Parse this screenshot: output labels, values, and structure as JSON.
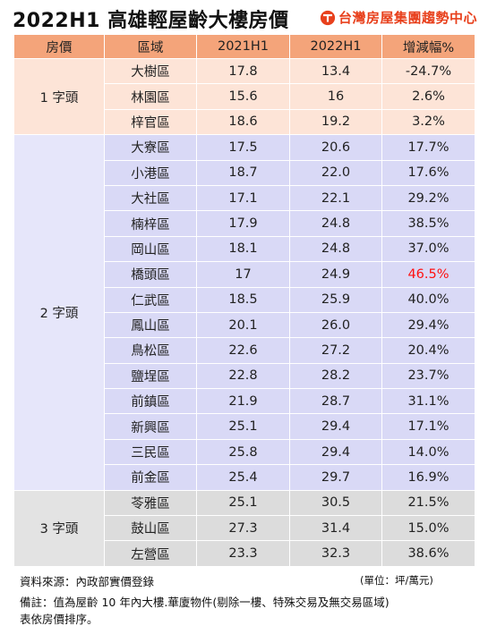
{
  "header": {
    "title": "2022H1 高雄輕屋齡大樓房價",
    "brand": "台灣房屋集團趨勢中心"
  },
  "table": {
    "columns": [
      "房價",
      "區域",
      "2021H1",
      "2022H1",
      "增減幅%"
    ],
    "groups": [
      {
        "label": "1 字頭",
        "rows": [
          {
            "area": "大樹區",
            "y2021": "17.8",
            "y2022": "13.4",
            "change": "-24.7%"
          },
          {
            "area": "林園區",
            "y2021": "15.6",
            "y2022": "16",
            "change": "2.6%"
          },
          {
            "area": "梓官區",
            "y2021": "18.6",
            "y2022": "19.2",
            "change": "3.2%"
          }
        ]
      },
      {
        "label": "2 字頭",
        "rows": [
          {
            "area": "大寮區",
            "y2021": "17.5",
            "y2022": "20.6",
            "change": "17.7%"
          },
          {
            "area": "小港區",
            "y2021": "18.7",
            "y2022": "22.0",
            "change": "17.6%"
          },
          {
            "area": "大社區",
            "y2021": "17.1",
            "y2022": "22.1",
            "change": "29.2%"
          },
          {
            "area": "楠梓區",
            "y2021": "17.9",
            "y2022": "24.8",
            "change": "38.5%"
          },
          {
            "area": "岡山區",
            "y2021": "18.1",
            "y2022": "24.8",
            "change": "37.0%"
          },
          {
            "area": "橋頭區",
            "y2021": "17",
            "y2022": "24.9",
            "change": "46.5%",
            "highlight": true
          },
          {
            "area": "仁武區",
            "y2021": "18.5",
            "y2022": "25.9",
            "change": "40.0%"
          },
          {
            "area": "鳳山區",
            "y2021": "20.1",
            "y2022": "26.0",
            "change": "29.4%"
          },
          {
            "area": "鳥松區",
            "y2021": "22.6",
            "y2022": "27.2",
            "change": "20.4%"
          },
          {
            "area": "鹽埕區",
            "y2021": "22.8",
            "y2022": "28.2",
            "change": "23.7%"
          },
          {
            "area": "前鎮區",
            "y2021": "21.9",
            "y2022": "28.7",
            "change": "31.1%"
          },
          {
            "area": "新興區",
            "y2021": "25.1",
            "y2022": "29.4",
            "change": "17.1%"
          },
          {
            "area": "三民區",
            "y2021": "25.8",
            "y2022": "29.4",
            "change": "14.0%"
          },
          {
            "area": "前金區",
            "y2021": "25.4",
            "y2022": "29.7",
            "change": "16.9%"
          }
        ]
      },
      {
        "label": "3 字頭",
        "rows": [
          {
            "area": "苓雅區",
            "y2021": "25.1",
            "y2022": "30.5",
            "change": "21.5%"
          },
          {
            "area": "鼓山區",
            "y2021": "27.3",
            "y2022": "31.4",
            "change": "15.0%"
          },
          {
            "area": "左營區",
            "y2021": "23.3",
            "y2022": "32.3",
            "change": "38.6%"
          }
        ]
      }
    ]
  },
  "footer": {
    "source": "資料來源：內政部實價登錄",
    "unit": "(單位：坪/萬元)",
    "note_line1": "備註：值為屋齡 10 年內大樓.華廈物件(剔除一樓、特殊交易及無交易區域)",
    "note_line2": "表依房價排序。"
  },
  "colors": {
    "header_bg": "#f4a47a",
    "group1_bg": "#fde4d7",
    "group2_bg": "#d9d9f6",
    "group3_bg": "#dcdcdc",
    "highlight_text": "#ff1010",
    "brand": "#e8401c"
  },
  "icons": {
    "brand_logo": "taiwan-realty-logo-icon"
  }
}
